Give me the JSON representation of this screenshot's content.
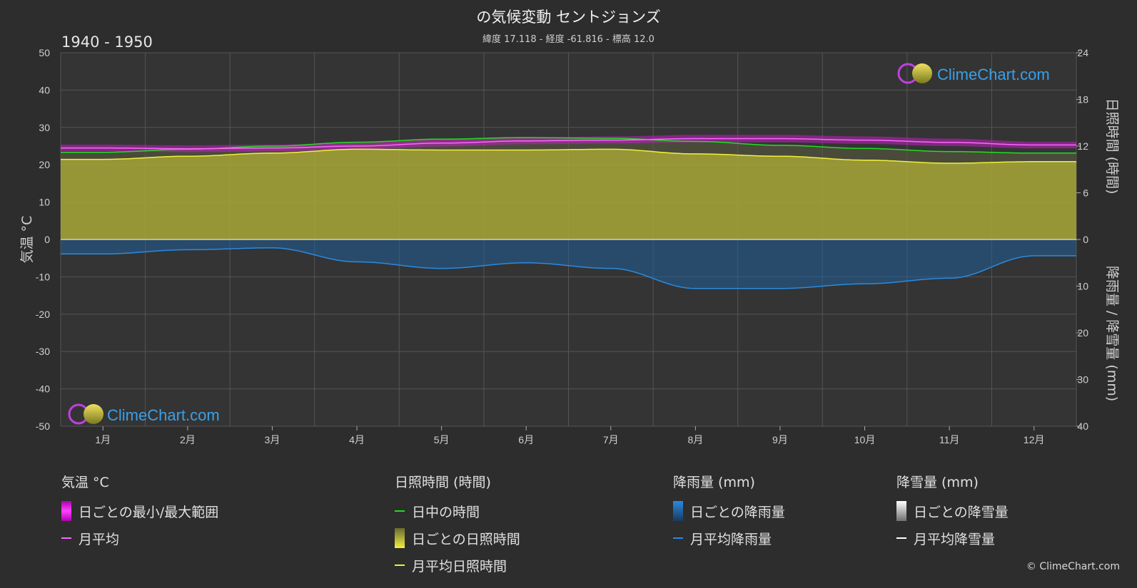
{
  "header": {
    "title": "の気候変動 セントジョンズ",
    "subtitle": "緯度 17.118 - 経度 -61.816 - 標高 12.0",
    "period": "1940 - 1950"
  },
  "axes": {
    "left_label": "気温 °C",
    "right_top_label": "日照時間 (時間)",
    "right_bottom_label": "降雨量 / 降雪量 (mm)"
  },
  "watermark": "ClimeChart.com",
  "copyright": "© ClimeChart.com",
  "colors": {
    "background": "#2d2d2d",
    "temp_range": "#e020e0",
    "temp_mean": "#ff66ff",
    "daylight": "#22dd22",
    "sunshine_fill": "#b0b030",
    "sunshine_mean": "#f0f040",
    "rain_fill": "#1f6fb8",
    "rain_mean": "#2a8ae0",
    "snow_mean": "#ffffff",
    "watermark_text": "#3aa0e8"
  },
  "legend": {
    "temperature": {
      "title": "気温 °C",
      "items": [
        {
          "label": "日ごとの最小/最大範囲",
          "swatch": "bar-magenta"
        },
        {
          "label": "月平均",
          "swatch": "line-magenta"
        }
      ]
    },
    "sunshine": {
      "title": "日照時間 (時間)",
      "items": [
        {
          "label": "日中の時間",
          "swatch": "line-green"
        },
        {
          "label": "日ごとの日照時間",
          "swatch": "bar-yellow"
        },
        {
          "label": "月平均日照時間",
          "swatch": "line-yellow"
        }
      ]
    },
    "rain": {
      "title": "降雨量 (mm)",
      "items": [
        {
          "label": "日ごとの降雨量",
          "swatch": "bar-blue"
        },
        {
          "label": "月平均降雨量",
          "swatch": "line-blue"
        }
      ]
    },
    "snow": {
      "title": "降雪量 (mm)",
      "items": [
        {
          "label": "日ごとの降雪量",
          "swatch": "bar-white"
        },
        {
          "label": "月平均降雪量",
          "swatch": "line-white"
        }
      ]
    }
  },
  "chart_data": {
    "type": "line",
    "categories": [
      "1月",
      "2月",
      "3月",
      "4月",
      "5月",
      "6月",
      "7月",
      "8月",
      "9月",
      "10月",
      "11月",
      "12月"
    ],
    "y_left": {
      "min": -50,
      "max": 50,
      "ticks": [
        50,
        40,
        30,
        20,
        10,
        0,
        -10,
        -20,
        -30,
        -40,
        -50
      ]
    },
    "y_right_sunshine": {
      "min": 0,
      "max": 24,
      "ticks": [
        24,
        18,
        12,
        6,
        0
      ]
    },
    "y_right_precip": {
      "min": 0,
      "max": 40,
      "ticks": [
        0,
        10,
        20,
        30,
        40
      ]
    },
    "grid": true,
    "series": [
      {
        "name": "日中の時間",
        "axis": "sunshine",
        "values": [
          11.2,
          11.6,
          12.0,
          12.5,
          12.9,
          13.1,
          13.0,
          12.6,
          12.1,
          11.7,
          11.3,
          11.1
        ]
      },
      {
        "name": "月平均日照時間",
        "axis": "sunshine",
        "values": [
          10.3,
          10.7,
          11.1,
          11.6,
          11.5,
          11.5,
          11.6,
          11.0,
          10.7,
          10.2,
          9.8,
          10.0
        ]
      },
      {
        "name": "月平均",
        "axis": "temperature",
        "values": [
          24.5,
          24.3,
          24.5,
          25.0,
          25.8,
          26.4,
          26.6,
          27.0,
          27.0,
          26.6,
          26.0,
          25.3
        ]
      },
      {
        "name": "日ごとの最小/最大範囲_min",
        "axis": "temperature",
        "values": [
          23.6,
          23.4,
          23.6,
          24.1,
          24.9,
          25.5,
          25.7,
          26.0,
          26.0,
          25.6,
          25.0,
          24.4
        ]
      },
      {
        "name": "日ごとの最小/最大範囲_max",
        "axis": "temperature",
        "values": [
          25.4,
          25.2,
          25.4,
          25.9,
          26.7,
          27.3,
          27.6,
          28.0,
          28.0,
          27.6,
          27.0,
          26.2
        ]
      },
      {
        "name": "月平均降雨量",
        "axis": "precip",
        "values": [
          3.1,
          2.2,
          1.8,
          4.8,
          6.2,
          5.0,
          6.2,
          10.5,
          10.5,
          9.5,
          8.3,
          3.5
        ]
      },
      {
        "name": "月平均降雪量",
        "axis": "precip",
        "values": [
          0,
          0,
          0,
          0,
          0,
          0,
          0,
          0,
          0,
          0,
          0,
          0
        ]
      }
    ]
  }
}
